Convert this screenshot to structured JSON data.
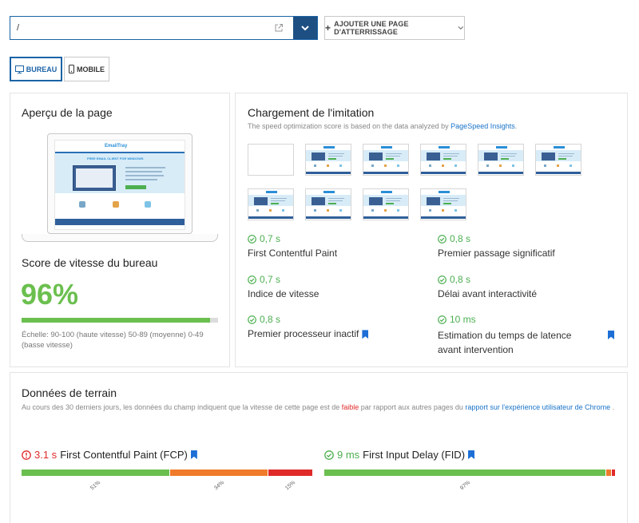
{
  "topbar": {
    "url_value": "/",
    "add_landing_label": "AJOUTER UNE PAGE D'ATTERRISSAGE"
  },
  "devices": [
    {
      "label": "BUREAU",
      "active": true
    },
    {
      "label": "MOBILE",
      "active": false
    }
  ],
  "preview": {
    "title": "Aperçu de la page",
    "site": {
      "brand": "EmailTray",
      "headline": "FREE EMAIL CLIENT FOR WINDOWS"
    }
  },
  "desktop_score": {
    "title": "Score de vitesse du bureau",
    "value": "96%",
    "progress": 0.96,
    "scale_text": "Échelle: 90-100 (haute vitesse) 50-89 (moyenne) 0-49 (basse vitesse)"
  },
  "simulation": {
    "title": "Chargement de l'imitation",
    "subtitle_prefix": "The speed optimization score is based on the data analyzed by ",
    "subtitle_link": "PageSpeed Insights",
    "subtitle_suffix": ".",
    "metrics": [
      {
        "value": "0,7 s",
        "label": "First Contentful Paint",
        "bookmark": false
      },
      {
        "value": "0,8 s",
        "label": "Premier passage significatif",
        "bookmark": false
      },
      {
        "value": "0,7 s",
        "label": "Indice de vitesse",
        "bookmark": false
      },
      {
        "value": "0,8 s",
        "label": "Délai avant interactivité",
        "bookmark": false
      },
      {
        "value": "0,8 s",
        "label": "Premier processeur inactif",
        "bookmark": true
      },
      {
        "value": "10 ms",
        "label": "Estimation du temps de latence avant intervention",
        "bookmark": true
      }
    ]
  },
  "field": {
    "title": "Données de terrain",
    "desc_prefix": "Au cours des 30 derniers jours, les données du champ indiquent que la vitesse de cette page est de ",
    "desc_status": "faible",
    "desc_middle": " par rapport aux autres pages du ",
    "desc_link": "rapport sur l'expérience utilisateur de Chrome",
    "desc_suffix": " .",
    "fcp": {
      "value": "3.1 s",
      "label": "First Contentful Paint (FCP)",
      "segments": [
        51,
        34,
        15
      ],
      "labels": [
        "51%",
        "34%",
        "15%"
      ]
    },
    "fid": {
      "value": "9 ms",
      "label": "First Input Delay (FID)",
      "segments": [
        97,
        2,
        1
      ],
      "labels": [
        "97%"
      ]
    }
  },
  "colors": {
    "good": "#6bbf4e",
    "average": "#ef7b2a",
    "poor": "#e02a2a",
    "accent": "#1a63a6"
  }
}
